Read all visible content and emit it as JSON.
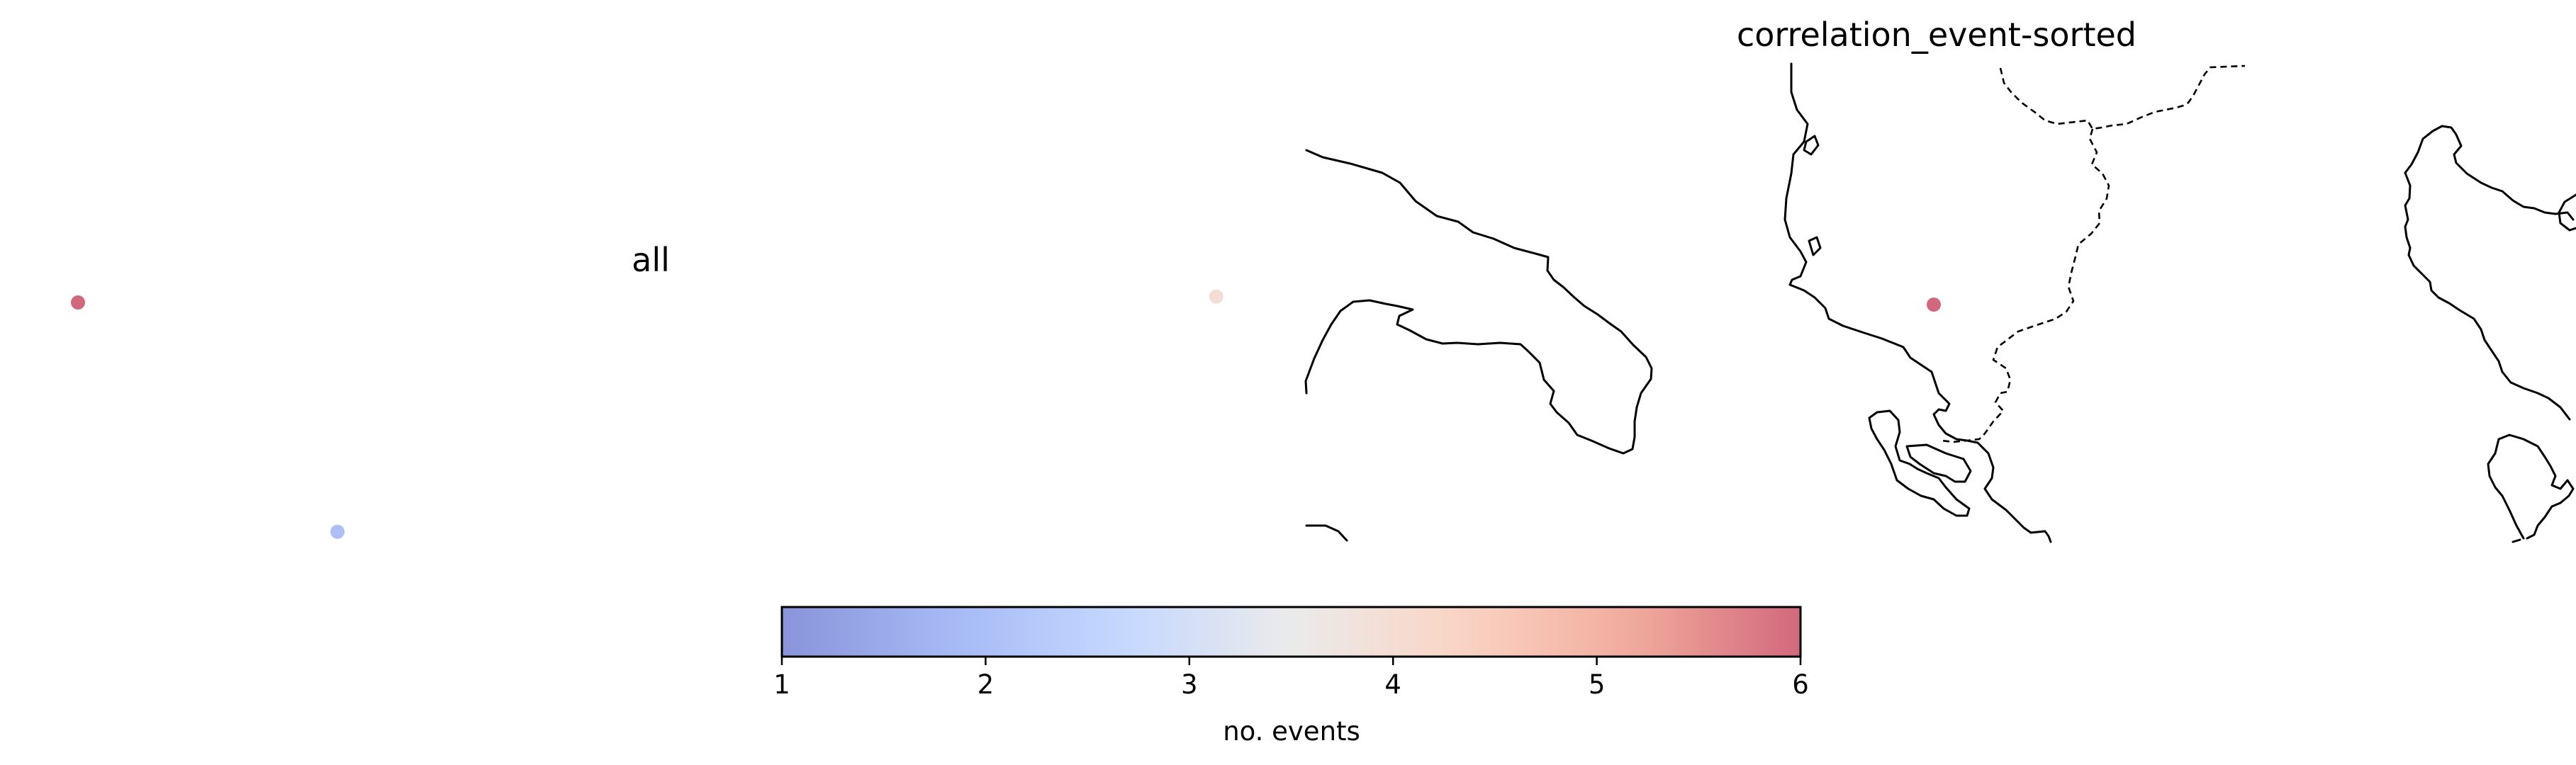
{
  "chart_data": [
    {
      "type": "scatter",
      "title": "all",
      "points": [
        {
          "value": 6,
          "lon": -122.4,
          "lat": 37.8
        },
        {
          "value": 2,
          "lon": -118.0,
          "lat": 33.9
        },
        {
          "value": 4,
          "lon": -103.1,
          "lat": 37.9
        }
      ]
    },
    {
      "type": "scatter",
      "title": "correlation_event-sorted",
      "points": [
        {
          "value": 6,
          "lon": -110.9,
          "lat": 32.2
        }
      ]
    }
  ],
  "colorbar": {
    "label": "no. events",
    "ticks": [
      "1",
      "2",
      "3",
      "4",
      "5",
      "6"
    ],
    "min": 1,
    "max": 6,
    "cmap": "coolwarm",
    "colors": [
      "#3b4cc0",
      "#6a8bef",
      "#9ebeff",
      "#dddddd",
      "#f7b89c",
      "#e7745b",
      "#b40426"
    ],
    "alpha": 0.6
  }
}
